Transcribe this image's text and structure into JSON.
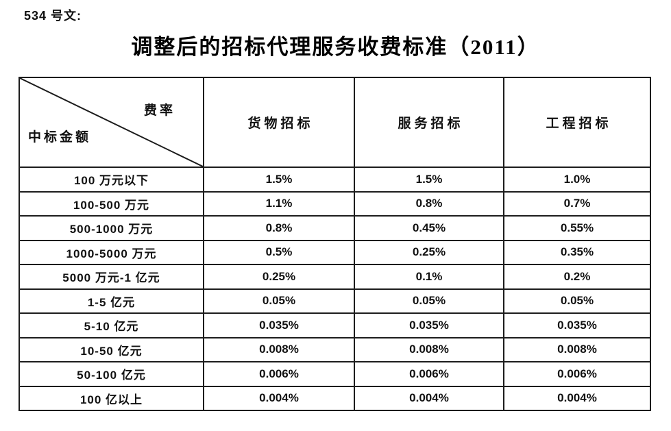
{
  "page": {
    "doc_number": "534 号文:",
    "title": "调整后的招标代理服务收费标准（2011）"
  },
  "table": {
    "corner": {
      "top_right": "费率",
      "bottom_left": "中标金额"
    },
    "columns": [
      "货物招标",
      "服务招标",
      "工程招标"
    ],
    "rows": [
      {
        "amount": "100 万元以下",
        "rates": [
          "1.5%",
          "1.5%",
          "1.0%"
        ]
      },
      {
        "amount": "100-500 万元",
        "rates": [
          "1.1%",
          "0.8%",
          "0.7%"
        ]
      },
      {
        "amount": "500-1000 万元",
        "rates": [
          "0.8%",
          "0.45%",
          "0.55%"
        ]
      },
      {
        "amount": "1000-5000 万元",
        "rates": [
          "0.5%",
          "0.25%",
          "0.35%"
        ]
      },
      {
        "amount": "5000 万元-1 亿元",
        "rates": [
          "0.25%",
          "0.1%",
          "0.2%"
        ]
      },
      {
        "amount": "1-5 亿元",
        "rates": [
          "0.05%",
          "0.05%",
          "0.05%"
        ]
      },
      {
        "amount": "5-10 亿元",
        "rates": [
          "0.035%",
          "0.035%",
          "0.035%"
        ]
      },
      {
        "amount": "10-50 亿元",
        "rates": [
          "0.008%",
          "0.008%",
          "0.008%"
        ]
      },
      {
        "amount": "50-100 亿元",
        "rates": [
          "0.006%",
          "0.006%",
          "0.006%"
        ]
      },
      {
        "amount": "100 亿以上",
        "rates": [
          "0.004%",
          "0.004%",
          "0.004%"
        ]
      }
    ]
  },
  "colors": {
    "border": "#1c1c1c",
    "text": "#111111",
    "background": "#ffffff"
  }
}
